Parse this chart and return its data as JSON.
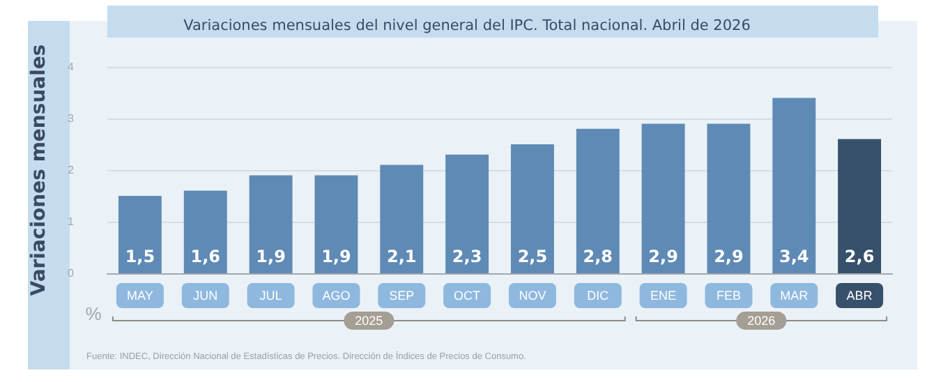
{
  "chart_data": {
    "type": "bar",
    "title": "Variaciones mensuales del nivel general del IPC. Total nacional. Abril de 2026",
    "ylabel": "Variaciones mensuales",
    "categories": [
      "MAY",
      "JUN",
      "JUL",
      "AGO",
      "SEP",
      "OCT",
      "NOV",
      "DIC",
      "ENE",
      "FEB",
      "MAR",
      "ABR"
    ],
    "values": [
      1.5,
      1.6,
      1.9,
      1.9,
      2.1,
      2.3,
      2.5,
      2.8,
      2.9,
      2.9,
      3.4,
      2.6
    ],
    "colors": [
      "#5f8ab5",
      "#5f8ab5",
      "#5f8ab5",
      "#5f8ab5",
      "#5f8ab5",
      "#5f8ab5",
      "#5f8ab5",
      "#5f8ab5",
      "#5f8ab5",
      "#5f8ab5",
      "#5f8ab5",
      "#37506b"
    ],
    "value_labels": [
      "1,5",
      "1,6",
      "1,9",
      "1,9",
      "2,1",
      "2,3",
      "2,5",
      "2,8",
      "2,9",
      "2,9",
      "3,4",
      "2,6"
    ],
    "ylim": [
      0,
      4
    ],
    "yticks": [
      0,
      1,
      2,
      3,
      4
    ],
    "grid": "y",
    "annotations": [
      "%",
      "Fuente: INDEC, Dirección Nacional de Estadísticas de Precios. Dirección de Índices de Precios de Consumo.",
      "2025",
      "2026"
    ]
  }
}
